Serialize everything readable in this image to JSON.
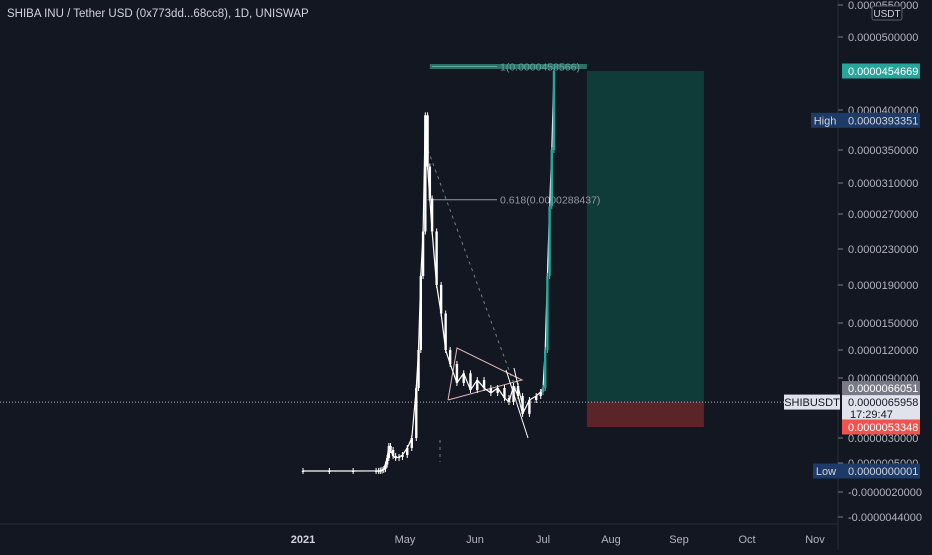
{
  "header": {
    "title": "SHIBA INU / Tether USD (0x773dd...68cc8), 1D, UNISWAP"
  },
  "colors": {
    "background": "#131722",
    "candle": "#ffffff",
    "target_zone": "#0f3b38",
    "target_line": "#2f6f68",
    "stop_zone": "#5a2428",
    "price_label": "#26a69a",
    "stop_label": "#ef5350",
    "high_low_label": "#1e3a66"
  },
  "chart_data": {
    "type": "candlestick",
    "symbol": "SHIBUSDT",
    "currency": "USDT",
    "ylim": [
      -5e-06,
      5.6e-05
    ],
    "x_ticks": [
      {
        "label": "2021",
        "date": "2021-01-01"
      },
      {
        "label": "May",
        "date": "2021-05-01"
      },
      {
        "label": "Jun",
        "date": "2021-06-01"
      },
      {
        "label": "Jul",
        "date": "2021-07-01"
      },
      {
        "label": "Aug",
        "date": "2021-08-01"
      },
      {
        "label": "Sep",
        "date": "2021-09-01"
      },
      {
        "label": "Oct",
        "date": "2021-10-01"
      },
      {
        "label": "Nov",
        "date": "2021-11-01"
      }
    ],
    "y_ticks": [
      "0.0000550000",
      "0.0000500000",
      "0.0000400000",
      "0.0000350000",
      "0.0000310000",
      "0.0000270000",
      "0.0000230000",
      "0.0000190000",
      "0.0000150000",
      "0.0000120000",
      "0.0000090000",
      "0.0000030000",
      "0.0000005000",
      "-0.0000020000",
      "-0.0000044000"
    ],
    "series": [
      {
        "date": "2021-01-01",
        "close": 1e-10
      },
      {
        "date": "2021-02-01",
        "close": 3e-10
      },
      {
        "date": "2021-03-01",
        "close": 1e-09
      },
      {
        "date": "2021-03-28",
        "close": 6e-09
      },
      {
        "date": "2021-03-31",
        "close": 1e-08
      },
      {
        "date": "2021-04-02",
        "close": 2.5e-08
      },
      {
        "date": "2021-04-04",
        "close": 7e-08
      },
      {
        "date": "2021-04-06",
        "close": 1.2e-07
      },
      {
        "date": "2021-04-08",
        "close": 4e-07
      },
      {
        "date": "2021-04-10",
        "close": 1e-06
      },
      {
        "date": "2021-04-12",
        "close": 2.2e-06
      },
      {
        "date": "2021-04-14",
        "close": 1.8e-06
      },
      {
        "date": "2021-04-17",
        "close": 1.2e-06
      },
      {
        "date": "2021-04-20",
        "close": 1e-06
      },
      {
        "date": "2021-04-24",
        "close": 1.1e-06
      },
      {
        "date": "2021-04-28",
        "close": 1.3e-06
      },
      {
        "date": "2021-05-02",
        "close": 2e-06
      },
      {
        "date": "2021-05-04",
        "close": 3e-06
      },
      {
        "date": "2021-05-06",
        "close": 8e-06
      },
      {
        "date": "2021-05-07",
        "close": 1.2e-05
      },
      {
        "date": "2021-05-08",
        "close": 2e-05
      },
      {
        "date": "2021-05-09",
        "close": 2.5e-05
      },
      {
        "date": "2021-05-10",
        "close": 3.93351e-05
      },
      {
        "date": "2021-05-11",
        "close": 3.3e-05
      },
      {
        "date": "2021-05-12",
        "close": 2.9e-05
      },
      {
        "date": "2021-05-13",
        "close": 2.5e-05
      },
      {
        "date": "2021-05-15",
        "close": 1.9e-05
      },
      {
        "date": "2021-05-17",
        "close": 1.6e-05
      },
      {
        "date": "2021-05-19",
        "close": 1.2e-05
      },
      {
        "date": "2021-05-21",
        "close": 1.05e-05
      },
      {
        "date": "2021-05-24",
        "close": 8.5e-06
      },
      {
        "date": "2021-05-27",
        "close": 9.5e-06
      },
      {
        "date": "2021-05-30",
        "close": 7.8e-06
      },
      {
        "date": "2021-06-02",
        "close": 8.8e-06
      },
      {
        "date": "2021-06-05",
        "close": 8e-06
      },
      {
        "date": "2021-06-08",
        "close": 7.5e-06
      },
      {
        "date": "2021-06-11",
        "close": 8e-06
      },
      {
        "date": "2021-06-14",
        "close": 7e-06
      },
      {
        "date": "2021-06-16",
        "close": 6.6e-06
      },
      {
        "date": "2021-06-18",
        "close": 8.2e-06
      },
      {
        "date": "2021-06-20",
        "close": 7.2e-06
      },
      {
        "date": "2021-06-22",
        "close": 6e-06
      },
      {
        "date": "2021-06-25",
        "close": 6.8e-06
      },
      {
        "date": "2021-06-28",
        "close": 7.2e-06
      },
      {
        "date": "2021-06-30",
        "close": 7.6e-06
      },
      {
        "date": "2021-07-01",
        "close": 8e-06
      },
      {
        "date": "2021-07-02",
        "close": 1.2e-05
      },
      {
        "date": "2021-07-03",
        "close": 2e-05
      },
      {
        "date": "2021-07-04",
        "close": 2.8e-05
      },
      {
        "date": "2021-07-05",
        "close": 3.5e-05
      },
      {
        "date": "2021-07-06",
        "close": 4.54669e-05
      }
    ],
    "position": {
      "entry": 6.5958e-06,
      "target": 4.54669e-05,
      "stop": 5.3348e-06,
      "start_date": "2021-07-21",
      "end_date": "2021-09-12"
    },
    "fib_levels": [
      {
        "label": "1(0.0000458566)",
        "value": 4.58566e-05
      },
      {
        "label": "0.618(0.0000288437)",
        "value": 2.88437e-05
      }
    ],
    "price_labels": {
      "target": "0.0000454669",
      "high_tag": "High",
      "high": "0.0000393351",
      "mark": "0.0000066051",
      "symbol": "SHIBUSDT",
      "last": "0.0000065958",
      "countdown": "17:29:47",
      "stop": "0.0000053348",
      "low_tag": "Low",
      "low": "0.0000000001"
    }
  }
}
